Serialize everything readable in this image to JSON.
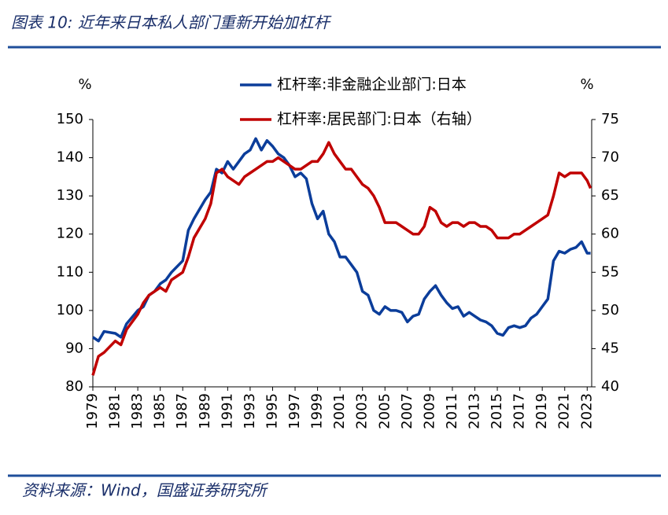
{
  "chart_data": {
    "type": "line",
    "title": "图表 10:  近年来日本私人部门重新开始加杠杆",
    "source": "资料来源：Wind，国盛证券研究所",
    "ylabel": "%",
    "y2label": "%",
    "x": [
      1979,
      1979.5,
      1980,
      1981,
      1981.5,
      1982,
      1983,
      1983.5,
      1984,
      1984.5,
      1985,
      1985.5,
      1986,
      1987,
      1987.5,
      1988,
      1989,
      1989.5,
      1990,
      1990.5,
      1991,
      1991.5,
      1992,
      1992.5,
      1993,
      1993.5,
      1994,
      1994.5,
      1995,
      1995.5,
      1996,
      1996.5,
      1997,
      1997.5,
      1998,
      1998.5,
      1999,
      1999.5,
      2000,
      2000.5,
      2001,
      2001.5,
      2002,
      2002.5,
      2003,
      2003.5,
      2004,
      2004.5,
      2005,
      2005.5,
      2006,
      2006.5,
      2007,
      2007.5,
      2008,
      2008.5,
      2009,
      2009.5,
      2010,
      2010.5,
      2011,
      2011.5,
      2012,
      2012.5,
      2013,
      2013.5,
      2014,
      2014.5,
      2015,
      2015.5,
      2016,
      2016.5,
      2017,
      2017.5,
      2018,
      2018.5,
      2019,
      2019.5,
      2020,
      2020.5,
      2021,
      2021.5,
      2022,
      2022.5,
      2023,
      2023.3
    ],
    "series": [
      {
        "name": "杠杆率:非金融企业部门:日本",
        "color": "#0b3d9a",
        "values": [
          93,
          92,
          94.5,
          94,
          93,
          96.5,
          100,
          101,
          104,
          105,
          107,
          108,
          110,
          113,
          121,
          124,
          129,
          131,
          137,
          136,
          139,
          137,
          139,
          141,
          142,
          145,
          142,
          144.5,
          143,
          141,
          140,
          138,
          135,
          136,
          134.5,
          128,
          124,
          126,
          120,
          118,
          114,
          114,
          112,
          110,
          105,
          104,
          100,
          99,
          101,
          100,
          100,
          99.5,
          97,
          98.5,
          99,
          103,
          105,
          106.5,
          104,
          102,
          100.5,
          101,
          98.5,
          99.5,
          98.5,
          97.5,
          97,
          96,
          94,
          93.5,
          95.5,
          96,
          95.5,
          96,
          98,
          99,
          101,
          103,
          113,
          115.5,
          115,
          116,
          116.5,
          118,
          115,
          115
        ]
      },
      {
        "name": "杠杆率:居民部门:日本（右轴）",
        "color": "#c00000",
        "axis": "y2",
        "values": [
          41.5,
          44,
          44.5,
          46,
          45.5,
          47.5,
          49.5,
          51,
          52,
          52.5,
          53,
          52.5,
          54,
          55,
          57,
          59.5,
          62,
          64,
          68,
          68.5,
          67.5,
          67,
          66.5,
          67.5,
          68,
          68.5,
          69,
          69.5,
          69.5,
          70,
          69.5,
          69,
          68.5,
          68.5,
          69,
          69.5,
          69.5,
          70.5,
          72,
          70.5,
          69.5,
          68.5,
          68.5,
          67.5,
          66.5,
          66,
          65,
          63.5,
          61.5,
          61.5,
          61.5,
          61,
          60.5,
          60,
          60,
          61,
          63.5,
          63,
          61.5,
          61,
          61.5,
          61.5,
          61,
          61.5,
          61.5,
          61,
          61,
          60.5,
          59.5,
          59.5,
          59.5,
          60,
          60,
          60.5,
          61,
          61.5,
          62,
          62.5,
          65,
          68,
          67.5,
          68,
          68,
          68,
          67,
          66
        ]
      }
    ],
    "xlim": [
      1979,
      2023.4
    ],
    "xticks": [
      1979,
      1981,
      1983,
      1985,
      1987,
      1989,
      1991,
      1993,
      1995,
      1997,
      1999,
      2001,
      2003,
      2005,
      2007,
      2009,
      2011,
      2013,
      2015,
      2017,
      2019,
      2021,
      2023
    ],
    "ylim": [
      80,
      150
    ],
    "yticks": [
      80,
      90,
      100,
      110,
      120,
      130,
      140,
      150
    ],
    "y2lim": [
      40,
      75
    ],
    "y2ticks": [
      40,
      45,
      50,
      55,
      60,
      65,
      70,
      75
    ],
    "legend": "top"
  }
}
